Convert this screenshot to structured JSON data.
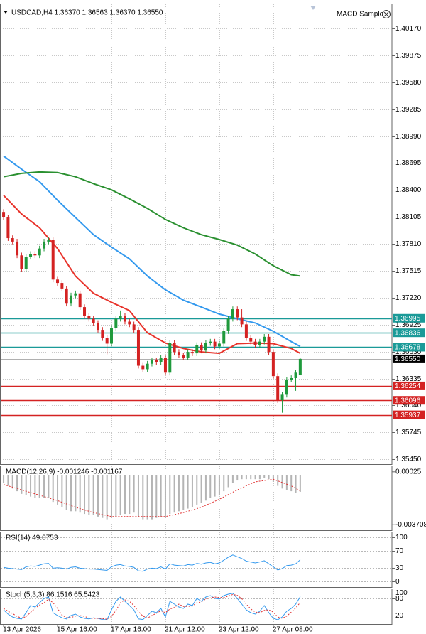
{
  "chart_data": [
    {
      "type": "candlestick",
      "title": "USDCAD,H4  1.36370 1.36563 1.36370 1.36550",
      "expert": "MACD Sample",
      "open": [
        1.3816,
        1.38099,
        1.37873,
        1.37835,
        1.37684,
        1.37533,
        1.37669,
        1.37699,
        1.37684,
        1.37759,
        1.37835,
        1.3785,
        1.37419,
        1.37382,
        1.37321,
        1.37155,
        1.37245,
        1.37268,
        1.37117,
        1.37019,
        1.36989,
        1.36943,
        1.36868,
        1.36777,
        1.36717,
        1.3689,
        1.36989,
        1.37019,
        1.36958,
        1.36928,
        1.36868,
        1.36475,
        1.36437,
        1.36497,
        1.36535,
        1.36512,
        1.36565,
        1.36399,
        1.36724,
        1.36626,
        1.36588,
        1.36565,
        1.36626,
        1.36611,
        1.36701,
        1.36641,
        1.36724,
        1.36739,
        1.36686,
        1.36717,
        1.36853,
        1.36989,
        1.37094,
        1.37004,
        1.36928,
        1.36777,
        1.36739,
        1.36701,
        1.36739,
        1.36792,
        1.36626,
        1.36361,
        1.36097,
        1.36157,
        1.36324,
        1.36339,
        1.3637
      ],
      "high": [
        1.3819,
        1.38129,
        1.37903,
        1.37865,
        1.37714,
        1.37699,
        1.37729,
        1.37729,
        1.37789,
        1.37865,
        1.3788,
        1.3788,
        1.37449,
        1.37412,
        1.37351,
        1.37275,
        1.37298,
        1.37298,
        1.37147,
        1.37049,
        1.37019,
        1.36973,
        1.36898,
        1.36807,
        1.3692,
        1.37019,
        1.3708,
        1.37049,
        1.36988,
        1.36958,
        1.36898,
        1.36505,
        1.36527,
        1.36565,
        1.36565,
        1.36595,
        1.36595,
        1.36754,
        1.36754,
        1.36656,
        1.36618,
        1.36656,
        1.36656,
        1.36731,
        1.36731,
        1.36754,
        1.36769,
        1.36769,
        1.36747,
        1.36883,
        1.37019,
        1.37124,
        1.37124,
        1.37094,
        1.36958,
        1.36807,
        1.36769,
        1.36769,
        1.36822,
        1.36822,
        1.36656,
        1.36391,
        1.36187,
        1.36354,
        1.36369,
        1.36429,
        1.36563
      ],
      "low": [
        1.38069,
        1.37843,
        1.37805,
        1.37654,
        1.37503,
        1.37503,
        1.37639,
        1.37654,
        1.37654,
        1.37729,
        1.37805,
        1.37389,
        1.37352,
        1.37291,
        1.37125,
        1.37125,
        1.37215,
        1.37087,
        1.36989,
        1.36959,
        1.36913,
        1.36838,
        1.36747,
        1.366,
        1.36687,
        1.3686,
        1.36959,
        1.36928,
        1.36898,
        1.36838,
        1.36445,
        1.36407,
        1.36407,
        1.36467,
        1.36482,
        1.36482,
        1.36369,
        1.36369,
        1.36596,
        1.36558,
        1.36535,
        1.36535,
        1.36581,
        1.36581,
        1.36611,
        1.36611,
        1.36694,
        1.36656,
        1.36656,
        1.36687,
        1.36823,
        1.36959,
        1.36974,
        1.36898,
        1.36747,
        1.36709,
        1.36671,
        1.36671,
        1.36709,
        1.36596,
        1.36331,
        1.36067,
        1.3596,
        1.36127,
        1.36294,
        1.362,
        1.3637
      ],
      "close": [
        1.38099,
        1.37873,
        1.37835,
        1.37684,
        1.37533,
        1.37669,
        1.37699,
        1.37684,
        1.37759,
        1.37835,
        1.3785,
        1.37419,
        1.37382,
        1.37321,
        1.37155,
        1.37245,
        1.37268,
        1.37117,
        1.37019,
        1.36989,
        1.36943,
        1.36868,
        1.36777,
        1.36717,
        1.3689,
        1.36989,
        1.37019,
        1.36958,
        1.36928,
        1.36868,
        1.36475,
        1.36437,
        1.36497,
        1.36535,
        1.36512,
        1.36565,
        1.36399,
        1.36724,
        1.36626,
        1.36588,
        1.36565,
        1.36626,
        1.36611,
        1.36701,
        1.36641,
        1.36724,
        1.36739,
        1.36686,
        1.36717,
        1.36853,
        1.36989,
        1.37094,
        1.37004,
        1.36928,
        1.36777,
        1.36739,
        1.36701,
        1.36739,
        1.36792,
        1.36626,
        1.36361,
        1.36097,
        1.36157,
        1.36324,
        1.36339,
        1.36399,
        1.3655
      ],
      "bull_color": "#1f9a3c",
      "bear_color": "#d42222",
      "xlim": [
        -0.8,
        86.4
      ],
      "xticks": [
        {
          "value": 0,
          "label": "13 Apr 2026"
        },
        {
          "value": 12,
          "label": "15 Apr 16:00"
        },
        {
          "value": 24,
          "label": "17 Apr 16:00"
        },
        {
          "value": 36,
          "label": "21 Apr 12:00"
        },
        {
          "value": 48,
          "label": "23 Apr 12:00"
        },
        {
          "value": 60,
          "label": "27 Apr 08:00"
        }
      ],
      "ylim": [
        1.3542,
        1.4042
      ],
      "yticks": [
        {
          "value": 1.4017,
          "label": "1.40170"
        },
        {
          "value": 1.39875,
          "label": "1.39875"
        },
        {
          "value": 1.3958,
          "label": "1.39580"
        },
        {
          "value": 1.39285,
          "label": "1.39285"
        },
        {
          "value": 1.3899,
          "label": "1.38990"
        },
        {
          "value": 1.38695,
          "label": "1.38695"
        },
        {
          "value": 1.384,
          "label": "1.38400"
        },
        {
          "value": 1.38105,
          "label": "1.38105"
        },
        {
          "value": 1.3781,
          "label": "1.37810"
        },
        {
          "value": 1.37515,
          "label": "1.37515"
        },
        {
          "value": 1.3722,
          "label": "1.37220"
        },
        {
          "value": 1.36925,
          "label": "1.36925"
        },
        {
          "value": 1.3663,
          "label": "1.36630"
        },
        {
          "value": 1.36335,
          "label": "1.36335"
        },
        {
          "value": 1.3604,
          "label": "1.36040"
        },
        {
          "value": 1.35745,
          "label": "1.35745"
        },
        {
          "value": 1.3545,
          "label": "1.35450"
        }
      ],
      "grid": true,
      "moving_averages": [
        {
          "color": "#e8332b",
          "x": [
            0,
            4,
            8,
            12,
            16,
            20,
            24,
            28,
            32,
            36,
            40,
            44,
            48,
            52,
            56,
            60,
            64,
            66
          ],
          "values": [
            1.38341,
            1.38137,
            1.37986,
            1.37759,
            1.37457,
            1.37268,
            1.3717,
            1.37079,
            1.36837,
            1.36724,
            1.36664,
            1.36626,
            1.36611,
            1.36717,
            1.36724,
            1.36717,
            1.36664,
            1.36611
          ]
        },
        {
          "color": "#3399ee",
          "x": [
            0,
            4,
            8,
            12,
            16,
            20,
            24,
            28,
            32,
            36,
            40,
            44,
            48,
            52,
            56,
            60,
            64,
            66
          ],
          "values": [
            1.38772,
            1.38628,
            1.38492,
            1.38288,
            1.38099,
            1.37911,
            1.37774,
            1.37646,
            1.37457,
            1.37306,
            1.37193,
            1.37117,
            1.37041,
            1.36989,
            1.36943,
            1.36853,
            1.36739,
            1.36686
          ]
        },
        {
          "color": "#2a9030",
          "x": [
            0,
            4,
            8,
            12,
            16,
            20,
            24,
            28,
            32,
            36,
            40,
            44,
            48,
            52,
            56,
            60,
            64,
            66
          ],
          "values": [
            1.38545,
            1.38583,
            1.38598,
            1.38591,
            1.38545,
            1.3847,
            1.38402,
            1.38303,
            1.38198,
            1.38077,
            1.37986,
            1.37911,
            1.37858,
            1.37797,
            1.37699,
            1.3757,
            1.37472,
            1.37457
          ]
        }
      ],
      "levels": [
        {
          "value": 1.36995,
          "color": "#1a9a98"
        },
        {
          "value": 1.36836,
          "color": "#1a9a98"
        },
        {
          "value": 1.36678,
          "color": "#1a9a98"
        },
        {
          "value": 1.3655,
          "label": "1.36550",
          "color": "#000000"
        },
        {
          "value": 1.36254,
          "color": "#d42222"
        },
        {
          "value": 1.36096,
          "color": "#d42222"
        },
        {
          "value": 1.35937,
          "color": "#d42222"
        }
      ]
    },
    {
      "type": "macd",
      "title": "MACD(12,26,9) -0.001246 -0.001167",
      "histogram": [
        -0.0006,
        -0.0008,
        -0.001,
        -0.0012,
        -0.0014,
        -0.0015,
        -0.0016,
        -0.0017,
        -0.0017,
        -0.0017,
        -0.0017,
        -0.002,
        -0.0022,
        -0.0024,
        -0.0026,
        -0.0027,
        -0.0027,
        -0.0028,
        -0.0029,
        -0.003,
        -0.003,
        -0.0031,
        -0.0032,
        -0.0033,
        -0.0032,
        -0.0031,
        -0.003,
        -0.0029,
        -0.0029,
        -0.0028,
        -0.0031,
        -0.0033,
        -0.0033,
        -0.0033,
        -0.0032,
        -0.0031,
        -0.0032,
        -0.0029,
        -0.0028,
        -0.0027,
        -0.0026,
        -0.0025,
        -0.0024,
        -0.0022,
        -0.0021,
        -0.0019,
        -0.0017,
        -0.0016,
        -0.0015,
        -0.0012,
        -0.0009,
        -0.0006,
        -0.0004,
        -0.0003,
        -0.0003,
        -0.0003,
        -0.0003,
        -0.0003,
        -0.0002,
        -0.0003,
        -0.0005,
        -0.0008,
        -0.001,
        -0.0011,
        -0.0012,
        -0.0013,
        -0.001246
      ],
      "histogram_color": "#b4b4b4",
      "signal": {
        "color": "#e03030",
        "x": [
          0,
          4,
          8,
          12,
          16,
          20,
          24,
          28,
          32,
          36,
          40,
          44,
          48,
          52,
          56,
          60,
          64,
          66
        ],
        "values": [
          -0.0007,
          -0.0011,
          -0.0015,
          -0.0019,
          -0.0024,
          -0.0028,
          -0.0031,
          -0.0031,
          -0.0031,
          -0.0031,
          -0.0028,
          -0.0024,
          -0.0018,
          -0.0011,
          -0.0005,
          -0.0003,
          -0.0008,
          -0.001167
        ]
      },
      "ylim": [
        -0.0038,
        0.0004
      ],
      "yticks": [
        0.00025,
        -0.003708
      ]
    },
    {
      "type": "line",
      "title": "RSI(14) 49.0753",
      "series": [
        {
          "color": "#3399ee",
          "values": [
            32,
            30,
            29,
            28,
            27,
            33,
            35,
            34,
            37,
            40,
            41,
            30,
            31,
            30,
            28,
            32,
            33,
            30,
            29,
            28,
            28,
            27,
            26,
            25,
            33,
            37,
            38,
            35,
            34,
            32,
            24,
            23,
            28,
            30,
            29,
            33,
            28,
            40,
            37,
            36,
            35,
            38,
            37,
            41,
            39,
            42,
            43,
            40,
            42,
            48,
            55,
            60,
            56,
            52,
            46,
            44,
            42,
            44,
            47,
            40,
            33,
            26,
            29,
            36,
            37,
            40,
            49.0753
          ]
        }
      ],
      "ylim": [
        0,
        100
      ],
      "yticks": [
        100,
        70,
        30,
        0
      ],
      "grid": true
    },
    {
      "type": "line",
      "title": "Stoch(5,3,3) 86.1516 65.5423",
      "series": [
        {
          "color": "#3399ee",
          "values": [
            40,
            25,
            15,
            10,
            8,
            30,
            55,
            50,
            65,
            80,
            85,
            30,
            20,
            12,
            8,
            20,
            25,
            15,
            10,
            8,
            12,
            10,
            6,
            5,
            40,
            70,
            85,
            70,
            55,
            40,
            8,
            6,
            20,
            35,
            30,
            45,
            15,
            70,
            60,
            50,
            45,
            60,
            55,
            80,
            70,
            85,
            90,
            80,
            78,
            90,
            95,
            98,
            80,
            60,
            40,
            30,
            25,
            35,
            55,
            30,
            10,
            5,
            15,
            35,
            45,
            60,
            86.1516
          ]
        },
        {
          "color": "#e03030",
          "style": "dotted",
          "values": [
            45,
            35,
            27,
            17,
            11,
            16,
            31,
            45,
            57,
            65,
            77,
            65,
            45,
            21,
            13,
            13,
            18,
            20,
            17,
            11,
            10,
            10,
            9,
            7,
            17,
            38,
            65,
            75,
            70,
            55,
            34,
            18,
            11,
            20,
            28,
            37,
            30,
            43,
            48,
            60,
            52,
            52,
            53,
            65,
            68,
            78,
            82,
            85,
            83,
            83,
            88,
            94,
            91,
            79,
            60,
            43,
            32,
            30,
            38,
            40,
            32,
            15,
            10,
            18,
            32,
            47,
            65.5423
          ]
        }
      ],
      "ylim": [
        0,
        100
      ],
      "yticks": [
        100,
        80,
        20
      ],
      "grid": true
    }
  ]
}
